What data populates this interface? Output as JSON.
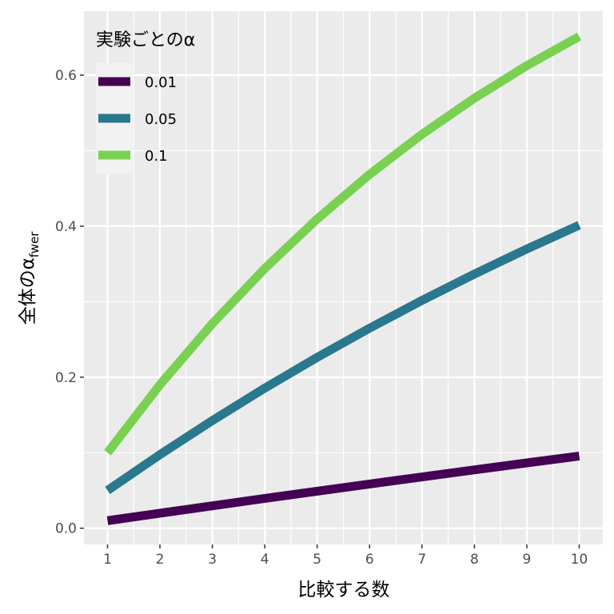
{
  "chart_data": {
    "type": "line",
    "xlabel": "比較する数",
    "ylabel_main": "全体のα",
    "ylabel_sub": "fwer",
    "x": [
      1,
      2,
      3,
      4,
      5,
      6,
      7,
      8,
      9,
      10
    ],
    "x_ticks": [
      "1",
      "2",
      "3",
      "4",
      "5",
      "6",
      "7",
      "8",
      "9",
      "10"
    ],
    "y_ticks": [
      "0.0",
      "0.2",
      "0.4",
      "0.6"
    ],
    "y_tick_values": [
      0.0,
      0.2,
      0.4,
      0.6
    ],
    "xlim": [
      0.55,
      10.45
    ],
    "ylim": [
      -0.0215,
      0.6847
    ],
    "grid": true,
    "legend": {
      "title": "実験ごとのα",
      "placement": "top-left"
    },
    "series": [
      {
        "name": "0.01",
        "color": "#440154",
        "values": [
          0.01,
          0.0199,
          0.0297,
          0.0394,
          0.049,
          0.0585,
          0.0679,
          0.0773,
          0.0865,
          0.0956
        ]
      },
      {
        "name": "0.05",
        "color": "#2a788e",
        "values": [
          0.05,
          0.0975,
          0.1426,
          0.1855,
          0.2262,
          0.2649,
          0.3017,
          0.3366,
          0.3698,
          0.4013
        ]
      },
      {
        "name": "0.1",
        "color": "#7ad151",
        "values": [
          0.1,
          0.19,
          0.271,
          0.3439,
          0.4095,
          0.4686,
          0.5217,
          0.5695,
          0.6126,
          0.6513
        ]
      }
    ]
  }
}
